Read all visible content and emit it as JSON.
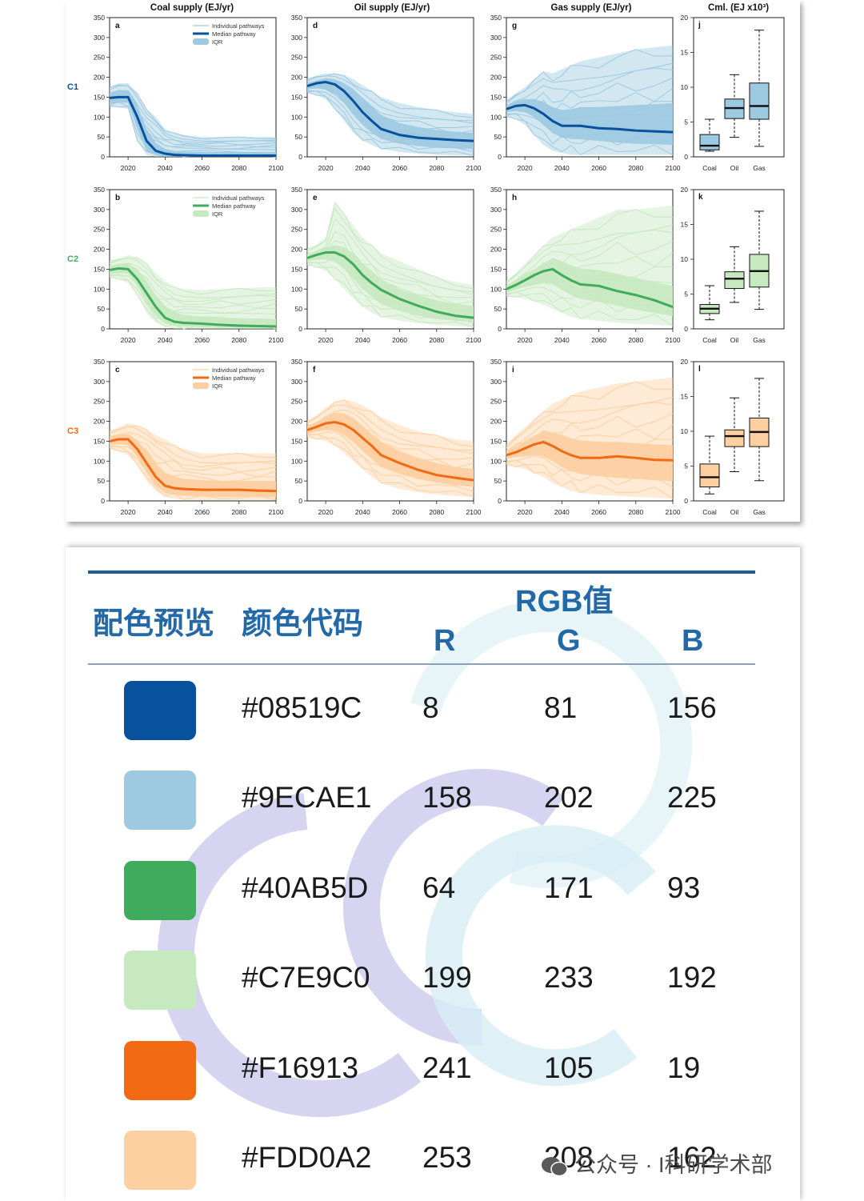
{
  "chart_data": {
    "type": "line",
    "column_titles": [
      "Coal supply (EJ/yr)",
      "Oil supply (EJ/yr)",
      "Gas supply (EJ/yr)",
      "Cml. (EJ x10³)"
    ],
    "row_labels": [
      "C1",
      "C2",
      "C3"
    ],
    "legend": [
      "Individual pathways",
      "Median pathway",
      "IQR"
    ],
    "x_ticks": [
      "2020",
      "2040",
      "2060",
      "2080",
      "2100"
    ],
    "xlim": [
      2010,
      2100
    ],
    "ylim": [
      0,
      350
    ],
    "y_ticks": [
      "0",
      "50",
      "100",
      "150",
      "200",
      "250",
      "300",
      "350"
    ],
    "box_ylim": [
      0,
      20
    ],
    "box_y_ticks": [
      "0",
      "5",
      "10",
      "15",
      "20"
    ],
    "box_categories": [
      "Coal",
      "Oil",
      "Gas"
    ],
    "x": [
      2010,
      2015,
      2020,
      2025,
      2030,
      2035,
      2040,
      2045,
      2050,
      2060,
      2070,
      2080,
      2090,
      2100
    ],
    "rows": [
      {
        "name": "C1",
        "colors": {
          "dark": "#08519C",
          "light": "#9ECAE1"
        },
        "panels": [
          {
            "letter": "a",
            "median": [
              148,
              150,
              150,
              100,
              40,
              15,
              8,
              5,
              4,
              3,
              3,
              3,
              3,
              3
            ],
            "iqr_low": [
              135,
              138,
              138,
              70,
              15,
              5,
              2,
              1,
              1,
              1,
              1,
              1,
              1,
              1
            ],
            "iqr_high": [
              160,
              165,
              168,
              130,
              70,
              35,
              20,
              15,
              13,
              12,
              12,
              12,
              12,
              12
            ],
            "max": [
              175,
              185,
              185,
              160,
              120,
              100,
              70,
              60,
              55,
              50,
              50,
              50,
              50,
              50
            ],
            "min": [
              125,
              125,
              120,
              40,
              5,
              0,
              0,
              0,
              0,
              0,
              0,
              0,
              0,
              0
            ]
          },
          {
            "letter": "d",
            "median": [
              178,
              185,
              188,
              182,
              165,
              140,
              112,
              90,
              70,
              55,
              48,
              45,
              42,
              40
            ],
            "iqr_low": [
              170,
              172,
              170,
              160,
              135,
              105,
              80,
              60,
              45,
              33,
              27,
              23,
              21,
              19
            ],
            "iqr_high": [
              185,
              192,
              198,
              195,
              185,
              170,
              145,
              125,
              105,
              85,
              75,
              68,
              63,
              60
            ],
            "max": [
              195,
              205,
              210,
              210,
              205,
              195,
              180,
              165,
              150,
              135,
              125,
              118,
              112,
              108
            ],
            "min": [
              160,
              155,
              145,
              120,
              90,
              60,
              40,
              30,
              20,
              12,
              8,
              5,
              4,
              3
            ]
          },
          {
            "letter": "g",
            "median": [
              120,
              128,
              130,
              122,
              108,
              90,
              78,
              78,
              78,
              72,
              70,
              66,
              64,
              62
            ],
            "iqr_low": [
              112,
              115,
              112,
              100,
              80,
              60,
              48,
              45,
              44,
              40,
              36,
              33,
              32,
              30
            ],
            "iqr_high": [
              128,
              138,
              145,
              145,
              138,
              125,
              118,
              120,
              125,
              125,
              128,
              130,
              132,
              135
            ],
            "max": [
              140,
              160,
              175,
              195,
              215,
              210,
              220,
              230,
              240,
              250,
              260,
              270,
              275,
              280
            ],
            "min": [
              100,
              95,
              80,
              55,
              30,
              15,
              10,
              5,
              5,
              5,
              5,
              5,
              5,
              5
            ]
          }
        ],
        "box": [
          {
            "category": "Coal",
            "min": 0.8,
            "q1": 1.0,
            "median": 1.6,
            "q3": 3.2,
            "max": 5.4
          },
          {
            "category": "Oil",
            "min": 2.8,
            "q1": 5.5,
            "median": 7.0,
            "q3": 8.3,
            "max": 11.8
          },
          {
            "category": "Gas",
            "min": 1.5,
            "q1": 5.4,
            "median": 7.3,
            "q3": 10.6,
            "max": 18.2
          }
        ]
      },
      {
        "name": "C2",
        "colors": {
          "dark": "#40AB5D",
          "light": "#C7E9C0"
        },
        "panels": [
          {
            "letter": "b",
            "median": [
              148,
              152,
              150,
              125,
              90,
              55,
              28,
              18,
              15,
              13,
              10,
              8,
              7,
              6
            ],
            "iqr_low": [
              138,
              140,
              138,
              108,
              65,
              32,
              13,
              8,
              6,
              4,
              3,
              3,
              3,
              3
            ],
            "iqr_high": [
              158,
              163,
              165,
              150,
              120,
              85,
              58,
              42,
              35,
              30,
              28,
              27,
              26,
              25
            ],
            "max": [
              170,
              178,
              185,
              180,
              165,
              140,
              120,
              105,
              100,
              98,
              100,
              102,
              104,
              105
            ],
            "min": [
              128,
              125,
              115,
              85,
              40,
              15,
              5,
              0,
              0,
              0,
              0,
              0,
              0,
              0
            ]
          },
          {
            "letter": "e",
            "median": [
              178,
              186,
              192,
              192,
              182,
              162,
              135,
              115,
              98,
              75,
              58,
              43,
              33,
              28
            ],
            "iqr_low": [
              170,
              174,
              174,
              168,
              150,
              125,
              100,
              80,
              62,
              45,
              33,
              25,
              20,
              17
            ],
            "iqr_high": [
              186,
              196,
              205,
              210,
              205,
              190,
              165,
              145,
              125,
              100,
              85,
              72,
              62,
              55
            ],
            "max": [
              200,
              212,
              230,
              320,
              290,
              260,
              230,
              210,
              190,
              170,
              150,
              130,
              118,
              110
            ],
            "min": [
              160,
              155,
              145,
              125,
              100,
              75,
              55,
              40,
              30,
              20,
              14,
              10,
              7,
              5
            ]
          },
          {
            "letter": "h",
            "median": [
              100,
              110,
              122,
              135,
              145,
              150,
              135,
              122,
              112,
              108,
              95,
              85,
              72,
              55
            ],
            "iqr_low": [
              92,
              98,
              105,
              110,
              115,
              112,
              98,
              85,
              75,
              68,
              58,
              48,
              40,
              32
            ],
            "iqr_high": [
              108,
              120,
              138,
              150,
              165,
              178,
              170,
              160,
              152,
              148,
              138,
              128,
              118,
              108
            ],
            "max": [
              120,
              140,
              165,
              185,
              210,
              230,
              240,
              250,
              260,
              280,
              300,
              300,
              305,
              310
            ],
            "min": [
              80,
              80,
              75,
              70,
              60,
              50,
              40,
              30,
              25,
              20,
              15,
              12,
              10,
              8
            ]
          }
        ],
        "box": [
          {
            "category": "Coal",
            "min": 1.3,
            "q1": 2.2,
            "median": 2.9,
            "q3": 3.5,
            "max": 6.2
          },
          {
            "category": "Oil",
            "min": 3.8,
            "q1": 5.8,
            "median": 7.2,
            "q3": 8.2,
            "max": 11.8
          },
          {
            "category": "Gas",
            "min": 2.8,
            "q1": 6.0,
            "median": 8.3,
            "q3": 10.7,
            "max": 16.9
          }
        ]
      },
      {
        "name": "C3",
        "colors": {
          "dark": "#F16913",
          "light": "#FDD0A2"
        },
        "panels": [
          {
            "letter": "c",
            "median": [
              150,
              155,
              155,
              130,
              95,
              60,
              38,
              32,
              30,
              28,
              28,
              28,
              26,
              25
            ],
            "iqr_low": [
              140,
              142,
              140,
              110,
              70,
              38,
              20,
              15,
              13,
              11,
              10,
              10,
              9,
              9
            ],
            "iqr_high": [
              160,
              166,
              168,
              152,
              125,
              95,
              70,
              60,
              55,
              52,
              50,
              50,
              50,
              50
            ],
            "max": [
              175,
              185,
              195,
              190,
              180,
              165,
              155,
              140,
              130,
              120,
              120,
              120,
              120,
              120
            ],
            "min": [
              130,
              125,
              115,
              90,
              50,
              25,
              10,
              5,
              3,
              2,
              2,
              2,
              2,
              2
            ]
          },
          {
            "letter": "f",
            "median": [
              178,
              186,
              195,
              198,
              192,
              178,
              158,
              138,
              115,
              95,
              78,
              65,
              58,
              52
            ],
            "iqr_low": [
              170,
              174,
              178,
              176,
              165,
              148,
              125,
              105,
              85,
              68,
              55,
              46,
              40,
              35
            ],
            "iqr_high": [
              186,
              198,
              212,
              222,
              220,
              208,
              188,
              168,
              148,
              125,
              108,
              95,
              85,
              80
            ],
            "max": [
              200,
              215,
              235,
              250,
              255,
              250,
              240,
              225,
              210,
              190,
              175,
              165,
              155,
              150
            ],
            "min": [
              160,
              155,
              150,
              140,
              120,
              100,
              80,
              60,
              45,
              30,
              22,
              16,
              12,
              10
            ]
          },
          {
            "letter": "i",
            "median": [
              115,
              122,
              132,
              142,
              148,
              138,
              125,
              115,
              108,
              108,
              112,
              108,
              103,
              102
            ],
            "iqr_low": [
              106,
              110,
              112,
              114,
              112,
              100,
              85,
              75,
              68,
              62,
              58,
              55,
              52,
              50
            ],
            "iqr_high": [
              124,
              136,
              150,
              164,
              175,
              172,
              165,
              158,
              152,
              148,
              148,
              145,
              142,
              140
            ],
            "max": [
              140,
              165,
              185,
              205,
              225,
              245,
              255,
              265,
              275,
              285,
              295,
              300,
              305,
              310
            ],
            "min": [
              90,
              85,
              80,
              70,
              60,
              45,
              35,
              25,
              20,
              15,
              12,
              10,
              8,
              5
            ]
          }
        ],
        "box": [
          {
            "category": "Coal",
            "min": 1.0,
            "q1": 2.0,
            "median": 3.4,
            "q3": 5.3,
            "max": 9.3
          },
          {
            "category": "Oil",
            "min": 4.2,
            "q1": 7.8,
            "median": 9.3,
            "q3": 10.2,
            "max": 14.8
          },
          {
            "category": "Gas",
            "min": 2.9,
            "q1": 7.8,
            "median": 9.9,
            "q3": 11.9,
            "max": 17.6
          }
        ]
      }
    ]
  },
  "palette_table": {
    "header_preview": "配色预览",
    "header_code": "颜色代码",
    "header_rgb": "RGB值",
    "header_r": "R",
    "header_g": "G",
    "header_b": "B",
    "rows": [
      {
        "code": "#08519C",
        "r": "8",
        "g": "81",
        "b": "156",
        "color": "#08519C"
      },
      {
        "code": "#9ECAE1",
        "r": "158",
        "g": "202",
        "b": "225",
        "color": "#9ECAE1"
      },
      {
        "code": "#40AB5D",
        "r": "64",
        "g": "171",
        "b": "93",
        "color": "#40AB5D"
      },
      {
        "code": "#C7E9C0",
        "r": "199",
        "g": "233",
        "b": "192",
        "color": "#C7E9C0"
      },
      {
        "code": "#F16913",
        "r": "241",
        "g": "105",
        "b": "19",
        "color": "#F16913"
      },
      {
        "code": "#FDD0A2",
        "r": "253",
        "g": "208",
        "b": "162",
        "color": "#FDD0A2"
      }
    ]
  },
  "watermark": {
    "text": "公众号 ·     I科研学术部"
  }
}
